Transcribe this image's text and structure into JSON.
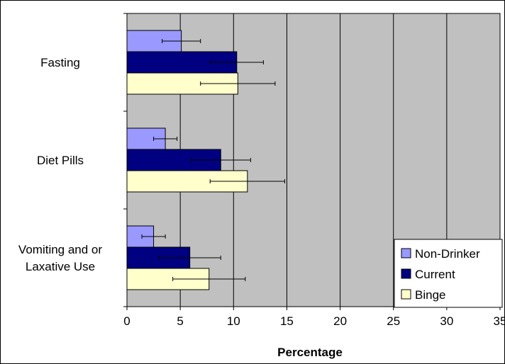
{
  "chart_data": {
    "type": "bar",
    "orientation": "horizontal",
    "categories": [
      "Fasting",
      "Diet Pills",
      "Vomiting and or\nLaxative Use"
    ],
    "series": [
      {
        "name": "Non-Drinker",
        "values": [
          5.1,
          3.6,
          2.5
        ],
        "error": [
          1.8,
          1.1,
          1.1
        ],
        "color": "#9999ff"
      },
      {
        "name": "Current",
        "values": [
          10.3,
          8.8,
          5.9
        ],
        "error": [
          2.5,
          2.8,
          2.9
        ],
        "color": "#000080"
      },
      {
        "name": "Binge",
        "values": [
          10.4,
          11.3,
          7.7
        ],
        "error": [
          3.5,
          3.5,
          3.4
        ],
        "color": "#ffffcc"
      }
    ],
    "xlabel": "Percentage",
    "ylabel": "",
    "title": "",
    "xlim": [
      0,
      35
    ],
    "xticks": [
      "0",
      "5",
      "10",
      "15",
      "20",
      "25",
      "30",
      "35"
    ],
    "grid": true,
    "legend_position": "bottom-right",
    "plot_background": "#c0c0c0"
  }
}
